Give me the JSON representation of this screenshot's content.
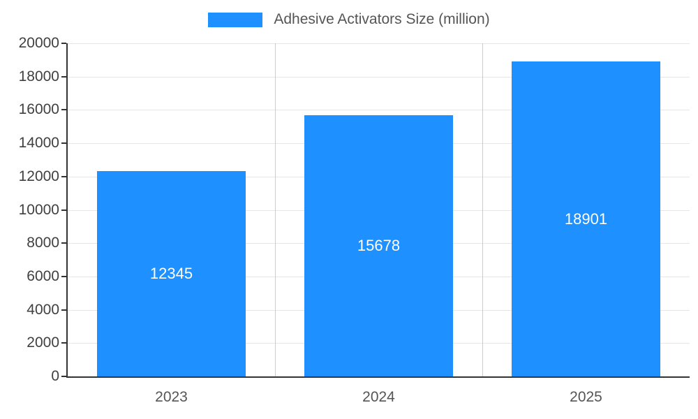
{
  "chart_data": {
    "type": "bar",
    "title": "Adhesive Activators Size (million)",
    "categories": [
      "2023",
      "2024",
      "2025"
    ],
    "values": [
      12345,
      15678,
      18901
    ],
    "xlabel": "",
    "ylabel": "",
    "ylim": [
      0,
      20000
    ],
    "ytick_step": 2000,
    "ytick_labels": [
      "0",
      "2000",
      "4000",
      "6000",
      "8000",
      "10000",
      "12000",
      "14000",
      "16000",
      "18000",
      "20000"
    ],
    "legend_position": "top-center",
    "grid": true,
    "value_labels_inside_bars": true,
    "colors": {
      "bar": "#1e90ff",
      "value_label": "#ffffff",
      "axis": "#333333",
      "tick_text": "#404040",
      "hgrid": "#e6e6e6",
      "vgrid": "#cccccc",
      "background": "#ffffff"
    }
  }
}
